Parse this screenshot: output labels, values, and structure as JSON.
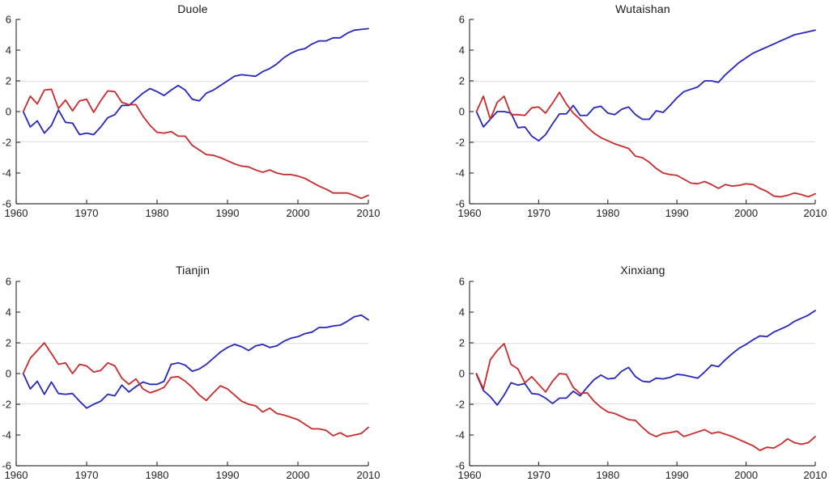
{
  "figure": {
    "background": "#ffffff",
    "text_color": "#222222",
    "axis_color": "#3a3a3a",
    "grid_color": "#dcdcdc"
  },
  "chart_data": [
    {
      "type": "line",
      "title": "Duole",
      "xlim": [
        1960,
        2010
      ],
      "ylim": [
        -6,
        6
      ],
      "xticks": [
        1960,
        1970,
        1980,
        1990,
        2000,
        2010
      ],
      "yticks": [
        -6,
        -4,
        -2,
        0,
        2,
        4,
        6
      ],
      "reference_hlines": [
        1.96,
        -1.96
      ],
      "grid": "horizontal-reference-only",
      "legend_position": "none",
      "x_start": 1961,
      "x_step": 1,
      "series": [
        {
          "name": "blue-line",
          "color": "#2626bf",
          "values": [
            0.0,
            -1.0,
            -0.6,
            -1.4,
            -0.9,
            0.1,
            -0.7,
            -0.75,
            -1.5,
            -1.4,
            -1.5,
            -1.0,
            -0.4,
            -0.2,
            0.4,
            0.4,
            0.8,
            1.2,
            1.5,
            1.3,
            1.05,
            1.4,
            1.7,
            1.4,
            0.8,
            0.7,
            1.2,
            1.4,
            1.7,
            2.0,
            2.3,
            2.4,
            2.35,
            2.3,
            2.6,
            2.8,
            3.1,
            3.5,
            3.8,
            4.0,
            4.1,
            4.4,
            4.6,
            4.6,
            4.8,
            4.8,
            5.1,
            5.3,
            5.35,
            5.4
          ]
        },
        {
          "name": "red-line",
          "color": "#c92b2b",
          "values": [
            0.0,
            1.0,
            0.5,
            1.4,
            1.45,
            0.2,
            0.75,
            0.05,
            0.7,
            0.8,
            -0.05,
            0.7,
            1.35,
            1.3,
            0.6,
            0.45,
            0.45,
            -0.3,
            -0.9,
            -1.35,
            -1.4,
            -1.3,
            -1.6,
            -1.6,
            -2.2,
            -2.5,
            -2.8,
            -2.85,
            -3.0,
            -3.2,
            -3.4,
            -3.55,
            -3.6,
            -3.8,
            -3.95,
            -3.8,
            -4.0,
            -4.1,
            -4.1,
            -4.2,
            -4.35,
            -4.6,
            -4.85,
            -5.05,
            -5.3,
            -5.3,
            -5.3,
            -5.45,
            -5.65,
            -5.45
          ]
        }
      ]
    },
    {
      "type": "line",
      "title": "Wutaishan",
      "xlim": [
        1960,
        2010
      ],
      "ylim": [
        -6,
        6
      ],
      "xticks": [
        1960,
        1970,
        1980,
        1990,
        2000,
        2010
      ],
      "yticks": [
        -6,
        -4,
        -2,
        0,
        2,
        4,
        6
      ],
      "reference_hlines": [
        1.96,
        -1.96
      ],
      "grid": "horizontal-reference-only",
      "legend_position": "none",
      "x_start": 1961,
      "x_step": 1,
      "series": [
        {
          "name": "blue-line",
          "color": "#2626bf",
          "values": [
            0.0,
            -1.0,
            -0.5,
            0.0,
            0.0,
            -0.1,
            -1.05,
            -1.0,
            -1.6,
            -1.9,
            -1.5,
            -0.8,
            -0.15,
            -0.15,
            0.4,
            -0.25,
            -0.25,
            0.25,
            0.35,
            -0.1,
            -0.2,
            0.15,
            0.3,
            -0.2,
            -0.5,
            -0.5,
            0.05,
            -0.05,
            0.4,
            0.9,
            1.3,
            1.45,
            1.6,
            2.0,
            2.0,
            1.9,
            2.4,
            2.8,
            3.2,
            3.5,
            3.8,
            4.0,
            4.2,
            4.4,
            4.6,
            4.8,
            5.0,
            5.1,
            5.2,
            5.3
          ]
        },
        {
          "name": "red-line",
          "color": "#c92b2b",
          "values": [
            0.0,
            1.0,
            -0.5,
            0.6,
            1.0,
            -0.2,
            -0.2,
            -0.25,
            0.25,
            0.3,
            -0.1,
            0.55,
            1.25,
            0.5,
            -0.1,
            -0.5,
            -1.0,
            -1.4,
            -1.7,
            -1.9,
            -2.1,
            -2.25,
            -2.4,
            -2.9,
            -3.0,
            -3.3,
            -3.7,
            -4.0,
            -4.1,
            -4.15,
            -4.4,
            -4.65,
            -4.7,
            -4.55,
            -4.75,
            -5.0,
            -4.75,
            -4.85,
            -4.8,
            -4.7,
            -4.75,
            -5.0,
            -5.2,
            -5.5,
            -5.55,
            -5.45,
            -5.3,
            -5.4,
            -5.55,
            -5.35
          ]
        }
      ]
    },
    {
      "type": "line",
      "title": "Tianjin",
      "xlim": [
        1960,
        2010
      ],
      "ylim": [
        -6,
        6
      ],
      "xticks": [
        1960,
        1970,
        1980,
        1990,
        2000,
        2010
      ],
      "yticks": [
        -6,
        -4,
        -2,
        0,
        2,
        4,
        6
      ],
      "reference_hlines": [
        1.96,
        -1.96
      ],
      "grid": "horizontal-reference-only",
      "legend_position": "none",
      "x_start": 1961,
      "x_step": 1,
      "series": [
        {
          "name": "blue-line",
          "color": "#2626bf",
          "values": [
            0.0,
            -1.0,
            -0.5,
            -1.35,
            -0.55,
            -1.3,
            -1.35,
            -1.3,
            -1.8,
            -2.25,
            -2.0,
            -1.8,
            -1.35,
            -1.45,
            -0.75,
            -1.2,
            -0.85,
            -0.55,
            -0.7,
            -0.7,
            -0.5,
            0.6,
            0.7,
            0.55,
            0.15,
            0.3,
            0.6,
            1.0,
            1.4,
            1.7,
            1.9,
            1.75,
            1.5,
            1.8,
            1.9,
            1.7,
            1.8,
            2.1,
            2.3,
            2.4,
            2.6,
            2.7,
            3.0,
            3.0,
            3.1,
            3.15,
            3.4,
            3.7,
            3.8,
            3.5
          ]
        },
        {
          "name": "red-line",
          "color": "#c92b2b",
          "values": [
            0.0,
            1.0,
            1.5,
            2.0,
            1.3,
            0.6,
            0.7,
            0.0,
            0.6,
            0.5,
            0.1,
            0.2,
            0.7,
            0.5,
            -0.3,
            -0.7,
            -0.35,
            -1.0,
            -1.25,
            -1.1,
            -0.9,
            -0.25,
            -0.2,
            -0.5,
            -0.9,
            -1.4,
            -1.75,
            -1.25,
            -0.8,
            -1.0,
            -1.4,
            -1.8,
            -2.0,
            -2.1,
            -2.5,
            -2.25,
            -2.6,
            -2.7,
            -2.85,
            -3.0,
            -3.3,
            -3.6,
            -3.6,
            -3.7,
            -4.05,
            -3.85,
            -4.1,
            -4.0,
            -3.9,
            -3.5
          ]
        }
      ]
    },
    {
      "type": "line",
      "title": "Xinxiang",
      "xlim": [
        1960,
        2010
      ],
      "ylim": [
        -6,
        6
      ],
      "xticks": [
        1960,
        1970,
        1980,
        1990,
        2000,
        2010
      ],
      "yticks": [
        -6,
        -4,
        -2,
        0,
        2,
        4,
        6
      ],
      "reference_hlines": [
        1.96,
        -1.96
      ],
      "grid": "horizontal-reference-only",
      "legend_position": "none",
      "x_start": 1961,
      "x_step": 1,
      "series": [
        {
          "name": "blue-line",
          "color": "#2626bf",
          "values": [
            -0.05,
            -1.1,
            -1.5,
            -2.05,
            -1.4,
            -0.6,
            -0.75,
            -0.65,
            -1.3,
            -1.35,
            -1.6,
            -1.95,
            -1.6,
            -1.6,
            -1.15,
            -1.45,
            -0.9,
            -0.4,
            -0.1,
            -0.35,
            -0.3,
            0.15,
            0.4,
            -0.2,
            -0.5,
            -0.55,
            -0.3,
            -0.35,
            -0.25,
            -0.05,
            -0.1,
            -0.2,
            -0.3,
            0.1,
            0.55,
            0.45,
            0.9,
            1.3,
            1.65,
            1.9,
            2.2,
            2.45,
            2.4,
            2.7,
            2.9,
            3.1,
            3.4,
            3.6,
            3.8,
            4.1
          ]
        },
        {
          "name": "red-line",
          "color": "#c92b2b",
          "values": [
            0.0,
            -1.0,
            0.9,
            1.5,
            1.95,
            0.6,
            0.3,
            -0.6,
            -0.2,
            -0.7,
            -1.2,
            -0.5,
            0.0,
            -0.05,
            -0.9,
            -1.3,
            -1.25,
            -1.8,
            -2.2,
            -2.5,
            -2.6,
            -2.8,
            -3.0,
            -3.05,
            -3.5,
            -3.9,
            -4.1,
            -3.9,
            -3.85,
            -3.75,
            -4.1,
            -3.95,
            -3.8,
            -3.65,
            -3.9,
            -3.8,
            -3.95,
            -4.1,
            -4.3,
            -4.5,
            -4.7,
            -5.0,
            -4.8,
            -4.85,
            -4.6,
            -4.25,
            -4.5,
            -4.6,
            -4.5,
            -4.1
          ]
        }
      ]
    }
  ]
}
